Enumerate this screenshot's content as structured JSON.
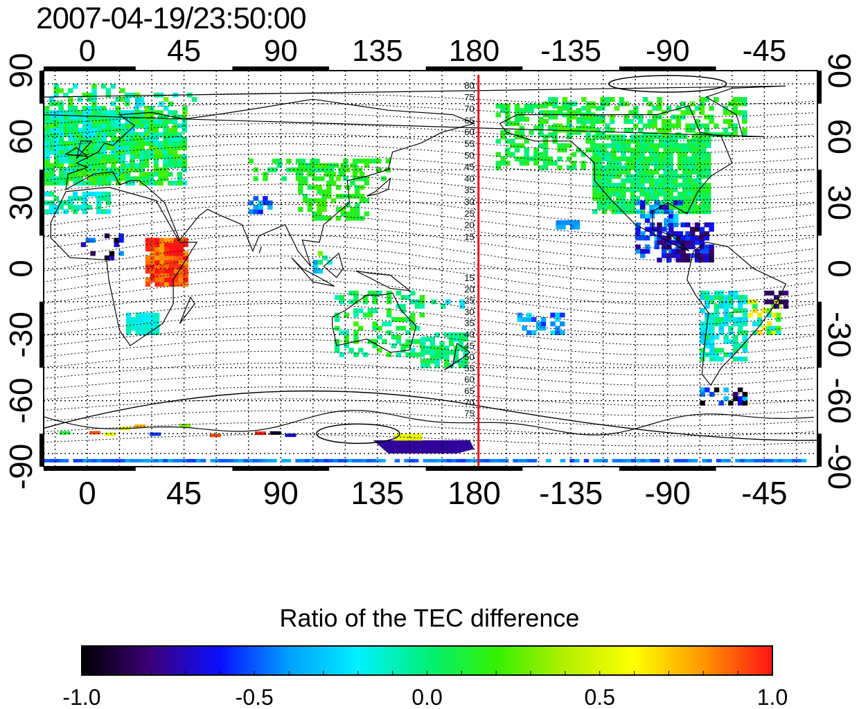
{
  "title": "2007-04-19/23:50:00",
  "map": {
    "top_axis_labels": [
      "0",
      "45",
      "90",
      "135",
      "180",
      "-135",
      "-90",
      "-45"
    ],
    "bottom_axis_labels": [
      "0",
      "45",
      "90",
      "135",
      "180",
      "-135",
      "-90",
      "-45"
    ],
    "left_axis_labels": [
      "90",
      "60",
      "30",
      "0",
      "-30",
      "-60",
      "-90"
    ],
    "right_axis_labels": [
      "90",
      "60",
      "30",
      "0",
      "-30",
      "-60",
      "-90"
    ],
    "meridian_line_longitude": 182,
    "meridian_line_color": "#e8141a",
    "meridian_labels_north": [
      "80",
      "75",
      "70",
      "65",
      "60",
      "55",
      "50",
      "45",
      "40",
      "35",
      "30",
      "25",
      "20",
      "15"
    ],
    "meridian_labels_south": [
      "15",
      "20",
      "25",
      "30",
      "35",
      "40",
      "45",
      "50",
      "55",
      "60",
      "65",
      "70",
      "75"
    ]
  },
  "colorbar": {
    "title": "Ratio of the TEC difference",
    "tick_labels": [
      "-1.0",
      "-0.5",
      "0.0",
      "0.5",
      "1.0"
    ],
    "range": [
      -1.0,
      1.0
    ],
    "colors": [
      "#000000",
      "#3c0078",
      "#0a10ff",
      "#00a0ff",
      "#00f0ff",
      "#00f07a",
      "#33f000",
      "#b4f000",
      "#ffff00",
      "#ff9600",
      "#ff1414"
    ]
  }
}
